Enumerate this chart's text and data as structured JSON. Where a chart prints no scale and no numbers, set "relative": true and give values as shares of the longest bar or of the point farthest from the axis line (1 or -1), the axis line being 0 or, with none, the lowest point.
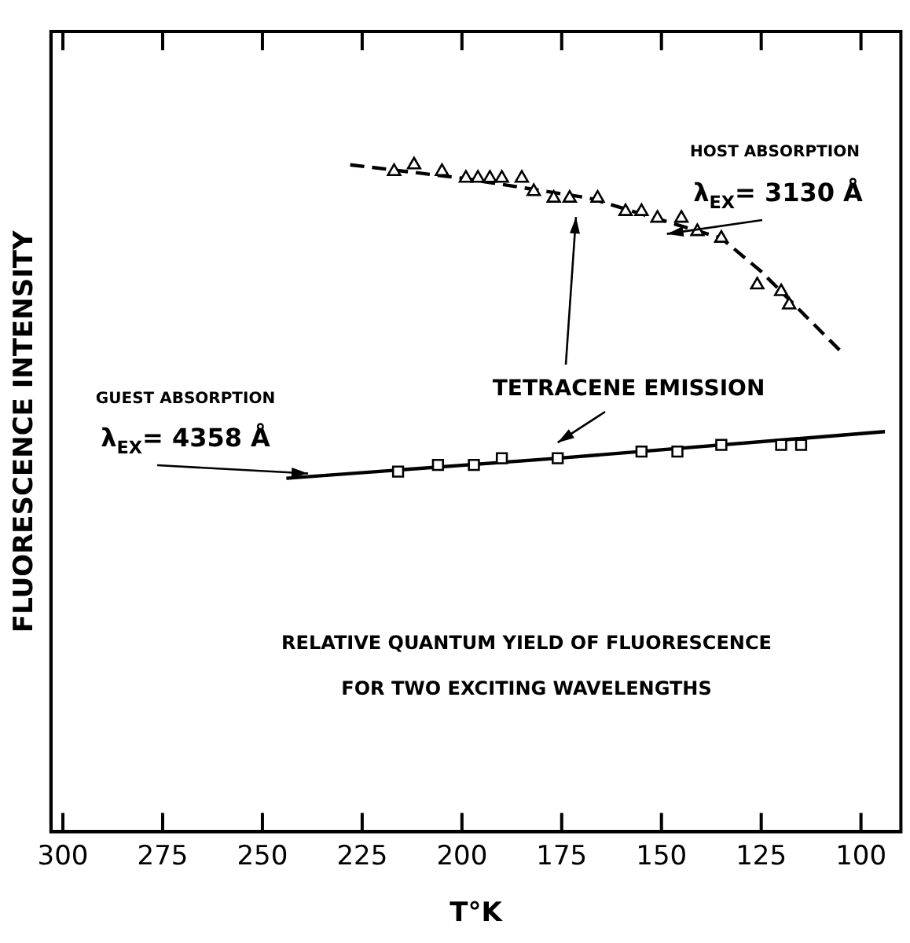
{
  "chart_data": {
    "type": "scatter",
    "xlabel": "T°K",
    "ylabel": "FLUORESCENCE INTENSITY",
    "relative": true,
    "xlim": [
      303,
      90
    ],
    "xticks": [
      300,
      275,
      250,
      225,
      200,
      175,
      150,
      125,
      100
    ],
    "grid": false,
    "legend": false,
    "annotations": [
      "HOST ABSORPTION",
      "λ$_{EX}$= 3130 Å",
      "TETRACENE EMISSION",
      "GUEST ABSORPTION",
      "λ$_{EX}$= 4358 Å",
      "RELATIVE QUANTUM YIELD OF FLUORESCENCE",
      "FOR TWO EXCITING WAVELENGTHS"
    ],
    "series": [
      {
        "marker": "triangle",
        "color": "#000000",
        "x": [
          217,
          212,
          205,
          199,
          196,
          193,
          190,
          185,
          182,
          177,
          173,
          166,
          159,
          155,
          151,
          145,
          141,
          135,
          126,
          120,
          118
        ],
        "values": [
          0.99,
          1.0,
          0.99,
          0.98,
          0.98,
          0.98,
          0.98,
          0.98,
          0.96,
          0.95,
          0.95,
          0.95,
          0.93,
          0.93,
          0.92,
          0.92,
          0.9,
          0.89,
          0.82,
          0.81,
          0.79
        ]
      },
      {
        "type": "line",
        "marker": "none",
        "line_style": "dashed",
        "color": "#000000",
        "x": [
          228,
          200,
          168,
          135,
          125,
          105
        ],
        "values": [
          1.0,
          0.98,
          0.95,
          0.89,
          0.84,
          0.72
        ]
      },
      {
        "marker": "square",
        "color": "#000000",
        "x": [
          216,
          206,
          197,
          190,
          176,
          155,
          146,
          135,
          120,
          115
        ],
        "values": [
          0.54,
          0.55,
          0.55,
          0.56,
          0.56,
          0.57,
          0.57,
          0.58,
          0.58,
          0.58
        ]
      },
      {
        "type": "line",
        "marker": "none",
        "line_style": "solid",
        "color": "#000000",
        "x": [
          244,
          176,
          94
        ],
        "values": [
          0.53,
          0.56,
          0.6
        ]
      }
    ]
  }
}
